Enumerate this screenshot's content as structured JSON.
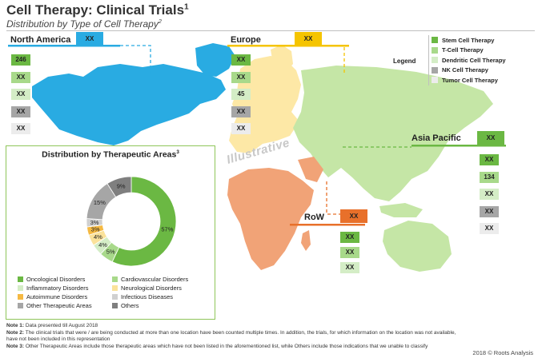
{
  "header": {
    "title": "Cell Therapy: Clinical Trials",
    "title_sup": "1",
    "subtitle": "Distribution by Type of Cell Therapy",
    "subtitle_sup": "2"
  },
  "legend": {
    "title": "Legend",
    "items": [
      {
        "label": "Stem Cell Therapy",
        "color": "#6bb843"
      },
      {
        "label": "T-Cell Therapy",
        "color": "#a8d98a"
      },
      {
        "label": "Dendritic Cell Therapy",
        "color": "#d4edc6"
      },
      {
        "label": "NK Cell Therapy",
        "color": "#a6a6a6"
      },
      {
        "label": "Tumor Cell Therapy",
        "color": "#ececec"
      }
    ]
  },
  "regions": {
    "north_america": {
      "name": "North America",
      "total": "XX",
      "color": "#29abe2",
      "values": [
        "246",
        "XX",
        "XX",
        "XX",
        "XX"
      ]
    },
    "europe": {
      "name": "Europe",
      "total": "XX",
      "color": "#f5c400",
      "values": [
        "XX",
        "XX",
        "45",
        "XX",
        "XX"
      ]
    },
    "asia_pacific": {
      "name": "Asia Pacific",
      "total": "XX",
      "color": "#6bb843",
      "values": [
        "XX",
        "134",
        "XX",
        "XX",
        "XX"
      ]
    },
    "row": {
      "name": "RoW",
      "total": "XX",
      "color": "#e8702a",
      "values": [
        "XX",
        "XX",
        "XX"
      ]
    }
  },
  "watermark": "Illustrative",
  "chart_data": {
    "type": "pie",
    "title": "Distribution by Therapeutic Areas",
    "title_sup": "3",
    "legend_position": "bottom",
    "slices": [
      {
        "label": "Oncological Disorders",
        "value": 57,
        "color": "#6bb843"
      },
      {
        "label": "Cardiovascular Disorders",
        "value": 5,
        "color": "#a8d98a"
      },
      {
        "label": "Inflammatory Disorders",
        "value": 4,
        "color": "#d4edc6"
      },
      {
        "label": "Neurological Disorders",
        "value": 4,
        "color": "#fbe29a"
      },
      {
        "label": "Autoimmune Disorders",
        "value": 3,
        "color": "#f5b942"
      },
      {
        "label": "Infectious Diseases",
        "value": 3,
        "color": "#d0d0d0"
      },
      {
        "label": "Other Therapeutic Areas",
        "value": 15,
        "color": "#a6a6a6"
      },
      {
        "label": "Others",
        "value": 9,
        "color": "#7f7f7f"
      }
    ],
    "data_labels": [
      "57%",
      "5%",
      "4%",
      "4%",
      "3%",
      "3%",
      "15%",
      "9%"
    ]
  },
  "notes": [
    {
      "label": "Note 1:",
      "text": " Data presented till August 2018"
    },
    {
      "label": "Note 2:",
      "text": " The clinical trials that were / are being conducted at more than one location have been counted multiple times. In addition, the trials, for which information on the location was not available,"
    },
    {
      "label": "",
      "text": "have not been included in this representation"
    },
    {
      "label": "Note 3:",
      "text": " Other Therapeutic Areas  include those therapeutic areas which have not been listed in the aforementioned list, while Others include those indications that we unable to classify"
    }
  ],
  "credit": "2018 © Roots Analysis"
}
